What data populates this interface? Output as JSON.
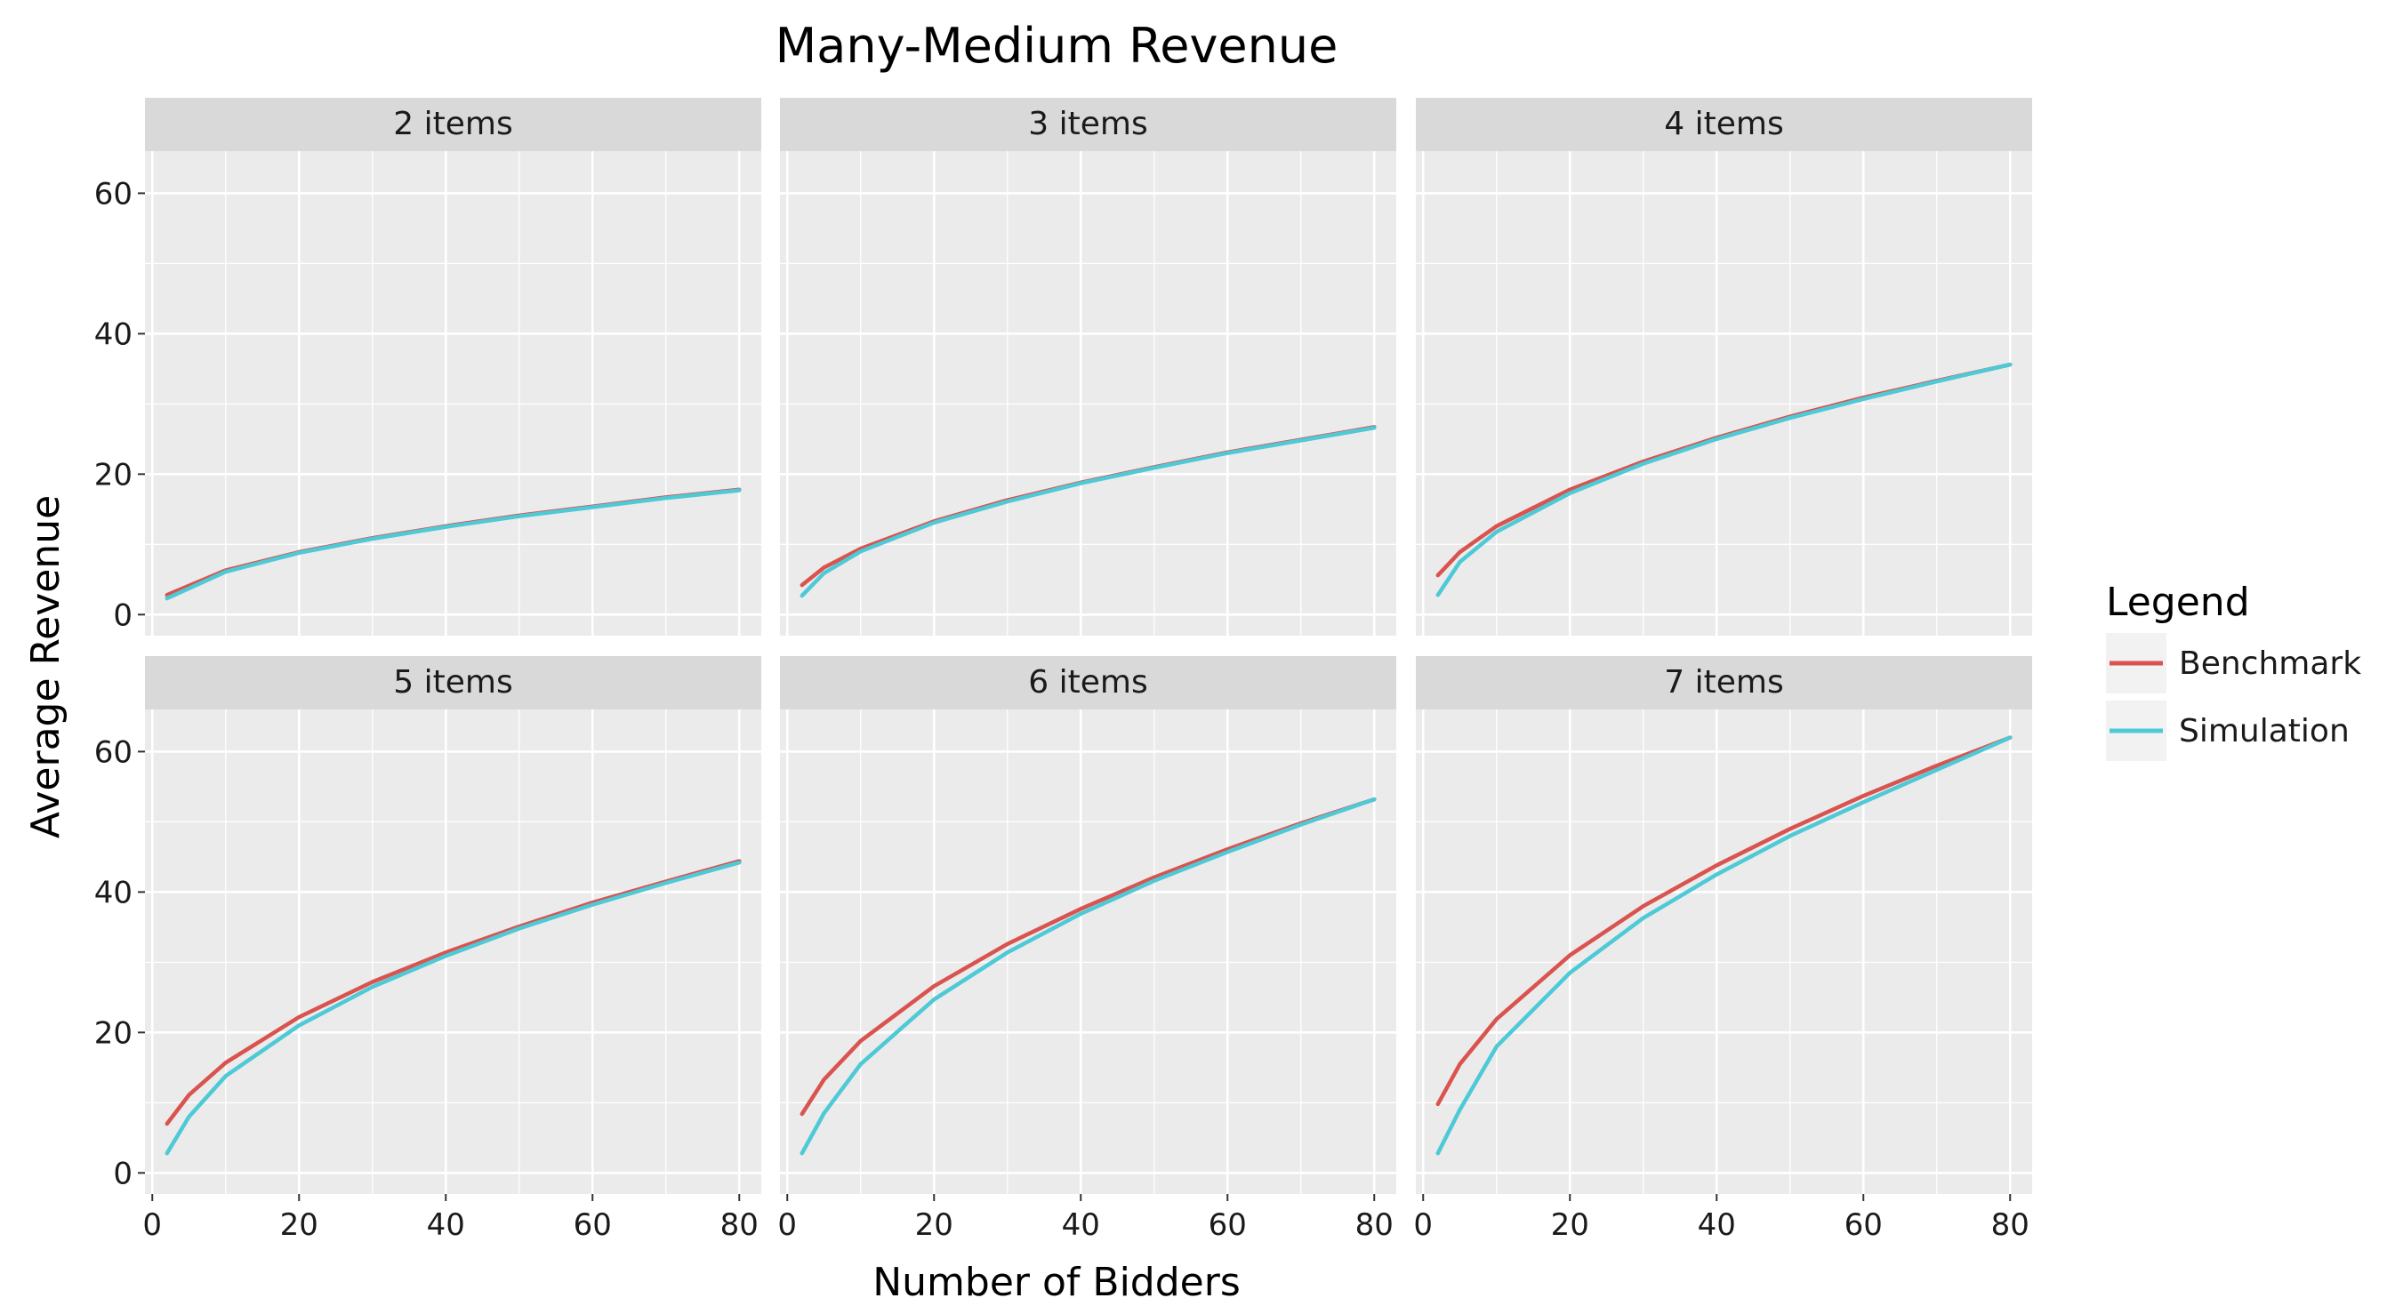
{
  "chart_data": {
    "type": "line",
    "title": "Many-Medium Revenue",
    "xlabel": "Number of Bidders",
    "ylabel": "Average Revenue",
    "xlim": [
      -1,
      83
    ],
    "ylim": [
      -3,
      66
    ],
    "x_ticks": [
      0,
      20,
      40,
      60,
      80
    ],
    "y_ticks": [
      0,
      20,
      40,
      60
    ],
    "grid": true,
    "legend": {
      "title": "Legend",
      "placement": "right",
      "entries": [
        {
          "name": "Benchmark",
          "color": "#d9534f"
        },
        {
          "name": "Simulation",
          "color": "#4ec9d6"
        }
      ]
    },
    "facet_layout": {
      "rows": 2,
      "cols": 3
    },
    "facets": [
      {
        "label": "2 items",
        "series": [
          {
            "name": "Benchmark",
            "x": [
              2,
              10,
              20,
              30,
              40,
              50,
              60,
              70,
              80
            ],
            "y": [
              2.8,
              6.3,
              8.9,
              10.9,
              12.6,
              14.1,
              15.4,
              16.7,
              17.8
            ]
          },
          {
            "name": "Simulation",
            "x": [
              2,
              10,
              20,
              30,
              40,
              50,
              60,
              70,
              80
            ],
            "y": [
              2.3,
              6.1,
              8.8,
              10.8,
              12.5,
              14.0,
              15.3,
              16.6,
              17.7
            ]
          }
        ]
      },
      {
        "label": "3 items",
        "series": [
          {
            "name": "Benchmark",
            "x": [
              2,
              5,
              10,
              20,
              30,
              40,
              50,
              60,
              70,
              80
            ],
            "y": [
              4.2,
              6.7,
              9.4,
              13.3,
              16.3,
              18.8,
              21.0,
              23.1,
              24.9,
              26.7
            ]
          },
          {
            "name": "Simulation",
            "x": [
              2,
              5,
              10,
              20,
              30,
              40,
              50,
              60,
              70,
              80
            ],
            "y": [
              2.7,
              5.9,
              9.0,
              13.1,
              16.1,
              18.7,
              20.9,
              23.0,
              24.8,
              26.6
            ]
          }
        ]
      },
      {
        "label": "4 items",
        "series": [
          {
            "name": "Benchmark",
            "x": [
              2,
              5,
              10,
              20,
              30,
              40,
              50,
              60,
              70,
              80
            ],
            "y": [
              5.6,
              8.9,
              12.6,
              17.8,
              21.8,
              25.2,
              28.2,
              30.9,
              33.3,
              35.6
            ]
          },
          {
            "name": "Simulation",
            "x": [
              2,
              5,
              10,
              20,
              30,
              40,
              50,
              60,
              70,
              80
            ],
            "y": [
              2.8,
              7.5,
              11.8,
              17.3,
              21.5,
              25.0,
              28.0,
              30.7,
              33.2,
              35.6
            ]
          }
        ]
      },
      {
        "label": "5 items",
        "series": [
          {
            "name": "Benchmark",
            "x": [
              2,
              5,
              10,
              20,
              30,
              40,
              50,
              60,
              70,
              80
            ],
            "y": [
              7.0,
              11.1,
              15.7,
              22.2,
              27.2,
              31.4,
              35.1,
              38.5,
              41.5,
              44.4
            ]
          },
          {
            "name": "Simulation",
            "x": [
              2,
              5,
              10,
              20,
              30,
              40,
              50,
              60,
              70,
              80
            ],
            "y": [
              2.8,
              8.0,
              13.8,
              21.0,
              26.5,
              30.9,
              34.8,
              38.2,
              41.3,
              44.2
            ]
          }
        ]
      },
      {
        "label": "6 items",
        "series": [
          {
            "name": "Benchmark",
            "x": [
              2,
              5,
              10,
              20,
              30,
              40,
              50,
              60,
              70,
              80
            ],
            "y": [
              8.4,
              13.3,
              18.8,
              26.6,
              32.6,
              37.6,
              42.1,
              46.1,
              49.8,
              53.2
            ]
          },
          {
            "name": "Simulation",
            "x": [
              2,
              5,
              10,
              20,
              30,
              40,
              50,
              60,
              70,
              80
            ],
            "y": [
              2.8,
              8.5,
              15.5,
              24.7,
              31.4,
              36.9,
              41.6,
              45.7,
              49.6,
              53.2
            ]
          }
        ]
      },
      {
        "label": "7 items",
        "series": [
          {
            "name": "Benchmark",
            "x": [
              2,
              5,
              10,
              20,
              30,
              40,
              50,
              60,
              70,
              80
            ],
            "y": [
              9.8,
              15.5,
              21.9,
              31.0,
              38.0,
              43.8,
              49.0,
              53.7,
              58.0,
              62.0
            ]
          },
          {
            "name": "Simulation",
            "x": [
              2,
              5,
              10,
              20,
              30,
              40,
              50,
              60,
              70,
              80
            ],
            "y": [
              2.8,
              9.0,
              18.0,
              28.5,
              36.3,
              42.5,
              48.0,
              52.8,
              57.4,
              62.0
            ]
          }
        ]
      }
    ]
  }
}
